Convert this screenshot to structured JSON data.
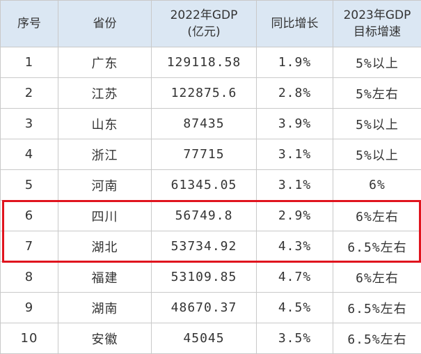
{
  "table": {
    "header": [
      [
        "序号"
      ],
      [
        "省份"
      ],
      [
        "2022年GDP",
        "(亿元)"
      ],
      [
        "同比增长"
      ],
      [
        "2023年GDP",
        "目标增速"
      ]
    ],
    "rows": [
      [
        "1",
        "广东",
        "129118.58",
        "1.9%",
        "5%以上"
      ],
      [
        "2",
        "江苏",
        "122875.6",
        "2.8%",
        "5%左右"
      ],
      [
        "3",
        "山东",
        "87435",
        "3.9%",
        "5%以上"
      ],
      [
        "4",
        "浙江",
        "77715",
        "3.1%",
        "5%以上"
      ],
      [
        "5",
        "河南",
        "61345.05",
        "3.1%",
        "6%"
      ],
      [
        "6",
        "四川",
        "56749.8",
        "2.9%",
        "6%左右"
      ],
      [
        "7",
        "湖北",
        "53734.92",
        "4.3%",
        "6.5%左右"
      ],
      [
        "8",
        "福建",
        "53109.85",
        "4.7%",
        "6%左右"
      ],
      [
        "9",
        "湖南",
        "48670.37",
        "4.5%",
        "6.5%左右"
      ],
      [
        "10",
        "安徽",
        "45045",
        "3.5%",
        "6.5%左右"
      ]
    ]
  }
}
